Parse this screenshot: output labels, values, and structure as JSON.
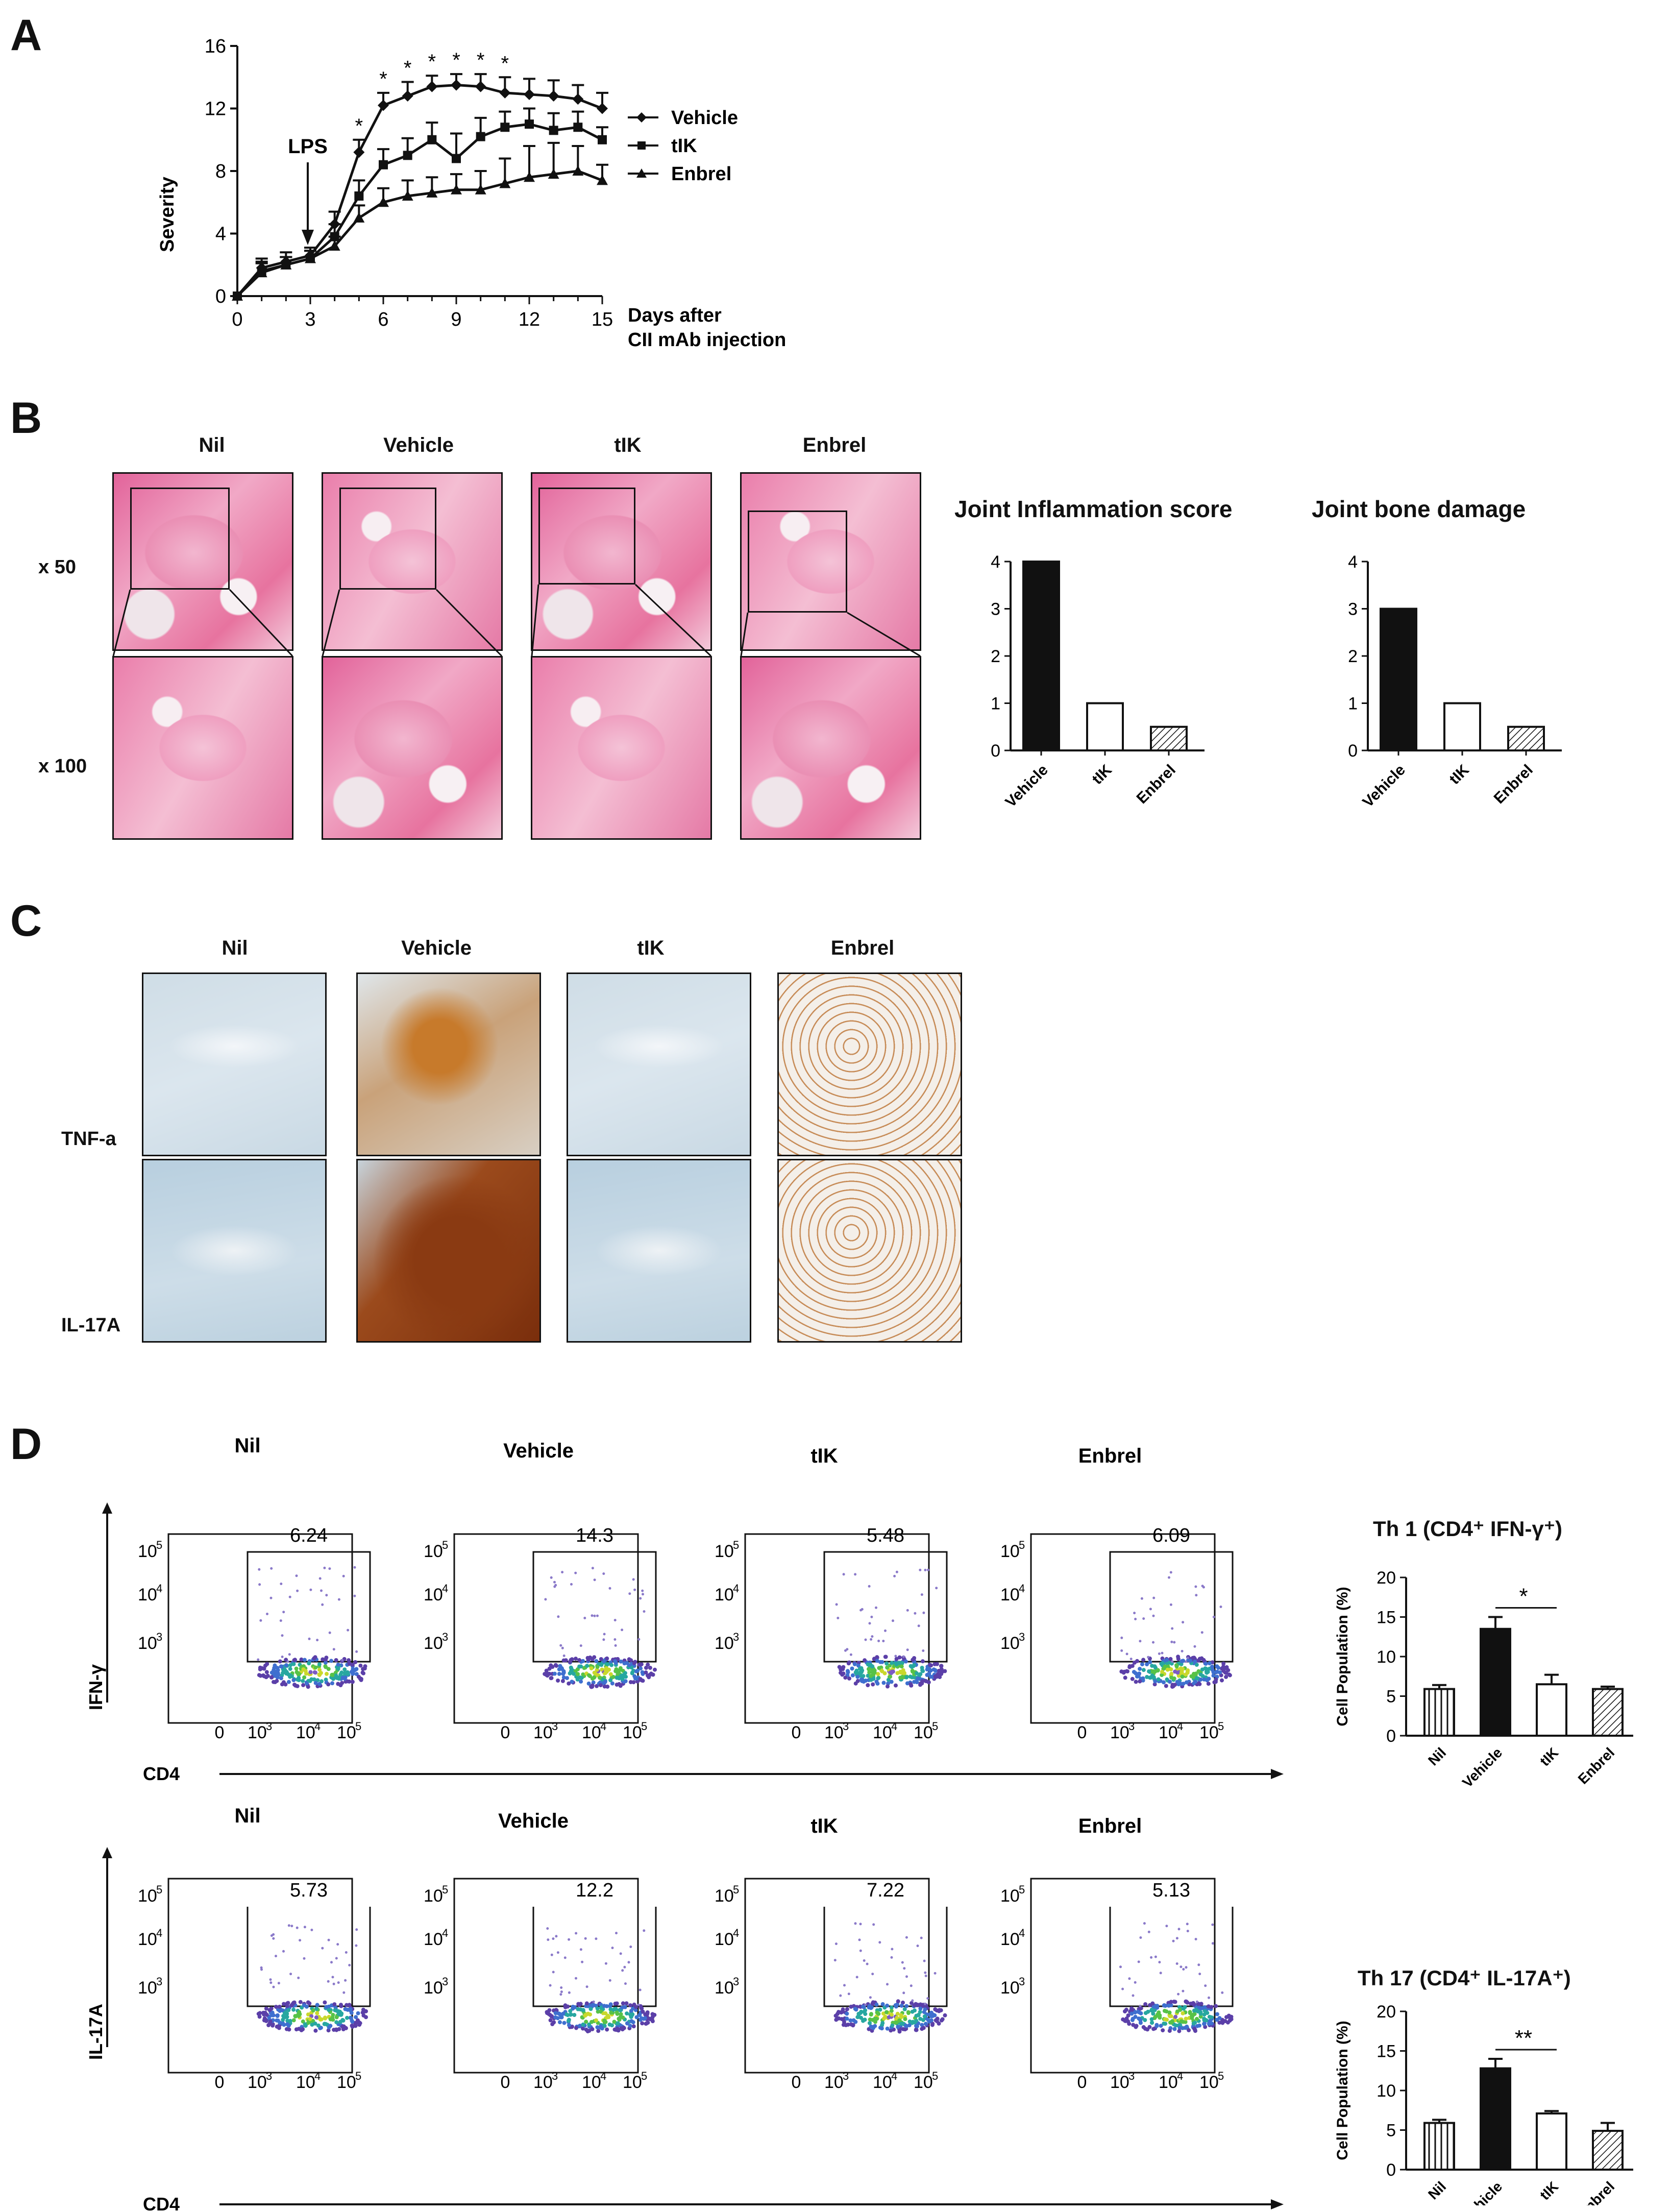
{
  "panels": {
    "A": "A",
    "B": "B",
    "C": "C",
    "D": "D"
  },
  "panelA": {
    "arrow_label": "LPS",
    "ylabel": "Severity",
    "xlabel_line1": "Days after",
    "xlabel_line2": "CII mAb injection",
    "yticks": [
      "0",
      "4",
      "8",
      "12",
      "16"
    ],
    "xticks": [
      "0",
      "3",
      "6",
      "9",
      "12",
      "15"
    ],
    "significance": [
      "*",
      "*",
      "*",
      "*",
      "*",
      "*",
      "*"
    ],
    "legend": [
      "Vehicle",
      "tIK",
      "Enbrel"
    ]
  },
  "panelB": {
    "col_headers": [
      "Nil",
      "Vehicle",
      "tIK",
      "Enbrel"
    ],
    "row_labels": [
      "x 50",
      "x 100"
    ],
    "chart1_title": "Joint Inflammation score",
    "chart2_title": "Joint bone damage",
    "yticks": [
      "0",
      "1",
      "2",
      "3",
      "4"
    ],
    "categories": [
      "Vehicle",
      "tIK",
      "Enbrel"
    ]
  },
  "panelC": {
    "col_headers": [
      "Nil",
      "Vehicle",
      "tIK",
      "Enbrel"
    ],
    "row_labels": [
      "TNF-a",
      "IL-17A"
    ]
  },
  "panelD": {
    "row1_headers": [
      "Nil",
      "Vehicle",
      "tIK",
      "Enbrel"
    ],
    "row2_headers": [
      "Nil",
      "Vehicle",
      "tIK",
      "Enbrel"
    ],
    "row1_values": [
      "6.24",
      "14.3",
      "5.48",
      "6.09"
    ],
    "row2_values": [
      "5.73",
      "12.2",
      "7.22",
      "5.13"
    ],
    "row1_ylabel": "IFN-γ",
    "row2_ylabel": "IL-17A",
    "xlabel": "CD4",
    "ytick_labels": [
      "10",
      "10",
      "10"
    ],
    "ytick_exp": [
      "5",
      "4",
      "3"
    ],
    "xtick_zero": "0",
    "xtick_labels": [
      "10",
      "10",
      "10"
    ],
    "xtick_exp": [
      "3",
      "4",
      "5"
    ],
    "th1_title": "Th 1 (CD4⁺ IFN-γ⁺)",
    "th17_title": "Th 17 (CD4⁺ IL-17A⁺)",
    "bar_ylabel": "Cell Population (%)",
    "bar_yticks": [
      "0",
      "5",
      "10",
      "15",
      "20"
    ],
    "bar_categories": [
      "Nil",
      "Vehicle",
      "tIK",
      "Enbrel"
    ],
    "th1_sig": "*",
    "th17_sig": "**"
  },
  "chart_data": [
    {
      "type": "line",
      "xlabel": "Days after CII mAb injection",
      "ylabel": "Severity",
      "xlim": [
        0,
        15
      ],
      "ylim": [
        0,
        16
      ],
      "x": [
        0,
        1,
        2,
        3,
        4,
        5,
        6,
        7,
        8,
        9,
        10,
        11,
        12,
        13,
        14,
        15
      ],
      "series": [
        {
          "name": "Vehicle",
          "marker": "diamond",
          "values": [
            0,
            1.8,
            2.2,
            2.6,
            4.6,
            9.2,
            12.2,
            12.8,
            13.4,
            13.5,
            13.4,
            13.0,
            12.9,
            12.8,
            12.6,
            12.0
          ],
          "err": [
            0,
            0.6,
            0.6,
            0.5,
            0.8,
            0.8,
            0.8,
            0.9,
            0.7,
            0.7,
            0.8,
            1.0,
            1.0,
            1.0,
            0.9,
            1.0
          ]
        },
        {
          "name": "tIK",
          "marker": "square",
          "values": [
            0,
            1.6,
            2.0,
            2.4,
            3.8,
            6.4,
            8.4,
            9.0,
            10.0,
            8.8,
            10.2,
            10.8,
            11.0,
            10.6,
            10.8,
            10.0
          ],
          "err": [
            0,
            0.6,
            0.5,
            0.5,
            0.8,
            1.0,
            1.0,
            1.1,
            1.1,
            1.6,
            1.2,
            1.0,
            1.0,
            1.1,
            1.0,
            0.8
          ]
        },
        {
          "name": "Enbrel",
          "marker": "triangle",
          "values": [
            0,
            1.5,
            2.0,
            2.4,
            3.2,
            5.0,
            6.0,
            6.4,
            6.6,
            6.8,
            6.8,
            7.2,
            7.6,
            7.8,
            8.0,
            7.4
          ],
          "err": [
            0,
            0.6,
            0.5,
            0.5,
            0.6,
            0.8,
            0.9,
            1.0,
            1.0,
            1.0,
            1.2,
            1.6,
            2.0,
            2.0,
            1.6,
            1.0
          ]
        }
      ],
      "annotation": "LPS at day 3",
      "significant_days": [
        5,
        6,
        7,
        8,
        9,
        10,
        11
      ]
    },
    {
      "type": "bar",
      "title": "Joint Inflammation score",
      "categories": [
        "Vehicle",
        "tIK",
        "Enbrel"
      ],
      "values": [
        4,
        1,
        0.5
      ],
      "fills": [
        "solid",
        "open",
        "hatched"
      ],
      "ylim": [
        0,
        4
      ]
    },
    {
      "type": "bar",
      "title": "Joint bone damage",
      "categories": [
        "Vehicle",
        "tIK",
        "Enbrel"
      ],
      "values": [
        3,
        1,
        0.5
      ],
      "fills": [
        "solid",
        "open",
        "hatched"
      ],
      "ylim": [
        0,
        4
      ]
    },
    {
      "type": "bar",
      "title": "Th 1 (CD4+ IFN-γ+)",
      "ylabel": "Cell Population (%)",
      "categories": [
        "Nil",
        "Vehicle",
        "tIK",
        "Enbrel"
      ],
      "values": [
        5.9,
        13.5,
        6.5,
        5.9
      ],
      "err": [
        0.5,
        1.5,
        1.2,
        0.3
      ],
      "fills": [
        "vertical-lines",
        "solid",
        "open",
        "hatched"
      ],
      "ylim": [
        0,
        20
      ],
      "significance": {
        "pair": [
          "Vehicle",
          "tIK"
        ],
        "label": "*"
      }
    },
    {
      "type": "bar",
      "title": "Th 17 (CD4+ IL-17A+)",
      "ylabel": "Cell Population (%)",
      "categories": [
        "Nil",
        "Vehicle",
        "tIK",
        "Enbrel"
      ],
      "values": [
        5.9,
        12.8,
        7.1,
        4.9
      ],
      "err": [
        0.4,
        1.2,
        0.3,
        1.0
      ],
      "fills": [
        "vertical-lines",
        "solid",
        "open",
        "hatched"
      ],
      "ylim": [
        0,
        20
      ],
      "significance": {
        "pair": [
          "Vehicle",
          "tIK"
        ],
        "label": "**"
      }
    }
  ]
}
